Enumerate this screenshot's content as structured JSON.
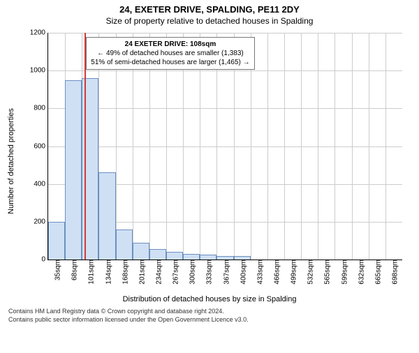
{
  "header": {
    "title": "24, EXETER DRIVE, SPALDING, PE11 2DY",
    "subtitle": "Size of property relative to detached houses in Spalding"
  },
  "chart": {
    "type": "histogram",
    "ylabel": "Number of detached properties",
    "xlabel": "Distribution of detached houses by size in Spalding",
    "ylim": [
      0,
      1200
    ],
    "ytick_step": 200,
    "x_categories": [
      "35sqm",
      "68sqm",
      "101sqm",
      "134sqm",
      "168sqm",
      "201sqm",
      "234sqm",
      "267sqm",
      "300sqm",
      "333sqm",
      "367sqm",
      "400sqm",
      "433sqm",
      "466sqm",
      "499sqm",
      "532sqm",
      "565sqm",
      "599sqm",
      "632sqm",
      "665sqm",
      "698sqm"
    ],
    "values": [
      200,
      950,
      960,
      460,
      160,
      90,
      55,
      40,
      30,
      25,
      18,
      20,
      0,
      0,
      0,
      0,
      0,
      0,
      0,
      0,
      0
    ],
    "bar_fill": "#cfe0f5",
    "bar_stroke": "#6b8fbf",
    "grid_color": "#cccccc",
    "background_color": "#ffffff",
    "marker": {
      "position_category_index": 2,
      "position_fraction_within": 0.21,
      "color": "#d23b3b"
    },
    "annotation": {
      "line1": "24 EXETER DRIVE: 108sqm",
      "line2": "← 49% of detached houses are smaller (1,383)",
      "line3": "51% of semi-detached houses are larger (1,465) →",
      "border_color": "#777777"
    }
  },
  "footer": {
    "line1": "Contains HM Land Registry data © Crown copyright and database right 2024.",
    "line2": "Contains public sector information licensed under the Open Government Licence v3.0."
  }
}
